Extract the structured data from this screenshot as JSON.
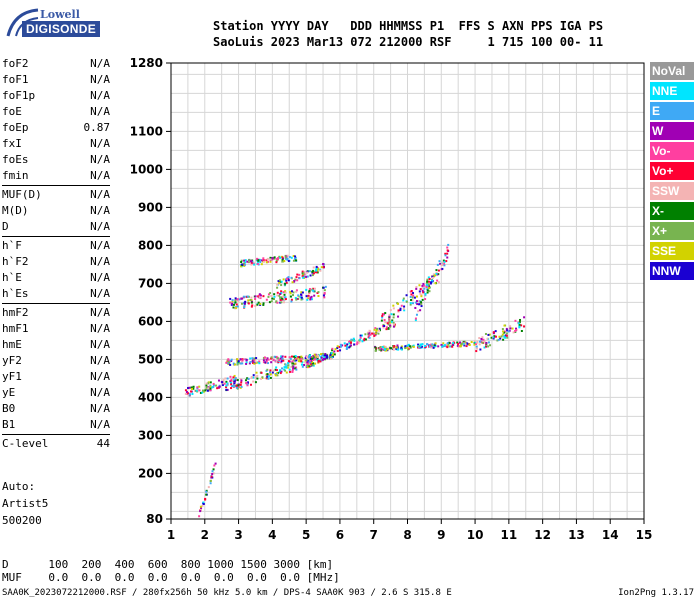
{
  "logo": {
    "line1": "Lowell",
    "line2": "DIGISONDE"
  },
  "header": {
    "row1": "Station YYYY DAY   DDD HHMMSS P1  FFS S AXN PPS IGA PS",
    "row2": "SaoLuis 2023 Mar13 072 212000 RSF     1 715 100 00- 11"
  },
  "params": [
    {
      "name": "foF2",
      "value": "N/A"
    },
    {
      "name": "foF1",
      "value": "N/A"
    },
    {
      "name": "foF1p",
      "value": "N/A"
    },
    {
      "name": "foE",
      "value": "N/A"
    },
    {
      "name": "foEp",
      "value": "0.87"
    },
    {
      "name": "fxI",
      "value": "N/A"
    },
    {
      "name": "foEs",
      "value": "N/A"
    },
    {
      "name": "fmin",
      "value": "N/A"
    },
    {
      "sep": true
    },
    {
      "name": "MUF(D)",
      "value": "N/A"
    },
    {
      "name": "M(D)",
      "value": "N/A"
    },
    {
      "name": "D",
      "value": "N/A"
    },
    {
      "sep": true
    },
    {
      "name": "h`F",
      "value": "N/A"
    },
    {
      "name": "h`F2",
      "value": "N/A"
    },
    {
      "name": "h`E",
      "value": "N/A"
    },
    {
      "name": "h`Es",
      "value": "N/A"
    },
    {
      "sep": true
    },
    {
      "name": "hmF2",
      "value": "N/A"
    },
    {
      "name": "hmF1",
      "value": "N/A"
    },
    {
      "name": "hmE",
      "value": "N/A"
    },
    {
      "name": "yF2",
      "value": "N/A"
    },
    {
      "name": "yF1",
      "value": "N/A"
    },
    {
      "name": "yE",
      "value": "N/A"
    },
    {
      "name": "B0",
      "value": "N/A"
    },
    {
      "name": "B1",
      "value": "N/A"
    },
    {
      "sep": true
    },
    {
      "name": "C-level",
      "value": "44"
    }
  ],
  "auto": {
    "label": "Auto:",
    "artist": "Artist5",
    "version": "500200"
  },
  "legend": [
    {
      "label": "NoVal",
      "color": "#999999"
    },
    {
      "label": "NNE",
      "color": "#00e5ff"
    },
    {
      "label": "E",
      "color": "#3fa9f5"
    },
    {
      "label": "W",
      "color": "#a000b4"
    },
    {
      "label": "Vo-",
      "color": "#ff3fa0"
    },
    {
      "label": "Vo+",
      "color": "#ff0033"
    },
    {
      "label": "SSW",
      "color": "#f4b4b4"
    },
    {
      "label": "X-",
      "color": "#008000"
    },
    {
      "label": "X+",
      "color": "#78b450"
    },
    {
      "label": "SSE",
      "color": "#d2d200"
    },
    {
      "label": "NNW",
      "color": "#1a00d2"
    }
  ],
  "axes": {
    "x_ticks": [
      "1",
      "2",
      "3",
      "4",
      "5",
      "6",
      "7",
      "8",
      "9",
      "10",
      "11",
      "12",
      "13",
      "14",
      "15"
    ],
    "y_ticks": [
      {
        "v": 80,
        "label": "80"
      },
      {
        "v": 200,
        "label": "200"
      },
      {
        "v": 300,
        "label": "300"
      },
      {
        "v": 400,
        "label": "400"
      },
      {
        "v": 500,
        "label": "500"
      },
      {
        "v": 600,
        "label": "600"
      },
      {
        "v": 700,
        "label": "700"
      },
      {
        "v": 800,
        "label": "800"
      },
      {
        "v": 900,
        "label": "900"
      },
      {
        "v": 1000,
        "label": "1000"
      },
      {
        "v": 1100,
        "label": "1100"
      },
      {
        "v": 1280,
        "label": "1280"
      }
    ],
    "x_range": [
      1,
      15
    ],
    "y_range": [
      80,
      1280
    ]
  },
  "bottom": {
    "d_row": "D      100  200  400  600  800 1000 1500 3000 [km]",
    "muf_row": "MUF    0.0  0.0  0.0  0.0  0.0  0.0  0.0  0.0 [MHz]"
  },
  "footer": {
    "left": "SAA0K_2023072212000.RSF / 280fx256h 50 kHz 5.0 km / DPS-4 SAA0K 903 / 2.6 S 315.8 E",
    "right": "Ion2Png 1.3.17"
  },
  "traces": [
    {
      "f1": 1.4,
      "f2": 2.9,
      "h1": 415,
      "h2": 450,
      "spread": 12
    },
    {
      "f1": 2.6,
      "f2": 5.2,
      "h1": 430,
      "h2": 500,
      "spread": 14
    },
    {
      "f1": 2.6,
      "f2": 5.8,
      "h1": 495,
      "h2": 510,
      "spread": 8
    },
    {
      "f1": 5.0,
      "f2": 7.6,
      "h1": 490,
      "h2": 600,
      "spread": 10
    },
    {
      "f1": 7.2,
      "f2": 8.9,
      "h1": 600,
      "h2": 720,
      "spread": 20
    },
    {
      "f1": 8.2,
      "f2": 9.2,
      "h1": 620,
      "h2": 790,
      "spread": 20
    },
    {
      "f1": 2.7,
      "f2": 5.6,
      "h1": 650,
      "h2": 680,
      "spread": 16
    },
    {
      "f1": 3.0,
      "f2": 4.7,
      "h1": 755,
      "h2": 770,
      "spread": 8
    },
    {
      "f1": 4.1,
      "f2": 5.5,
      "h1": 700,
      "h2": 745,
      "spread": 10
    },
    {
      "f1": 7.0,
      "f2": 10.0,
      "h1": 530,
      "h2": 545,
      "spread": 6
    },
    {
      "f1": 10.0,
      "f2": 11.5,
      "h1": 540,
      "h2": 600,
      "spread": 18
    },
    {
      "f1": 1.8,
      "f2": 2.3,
      "h1": 90,
      "h2": 230,
      "spread": 10
    }
  ]
}
